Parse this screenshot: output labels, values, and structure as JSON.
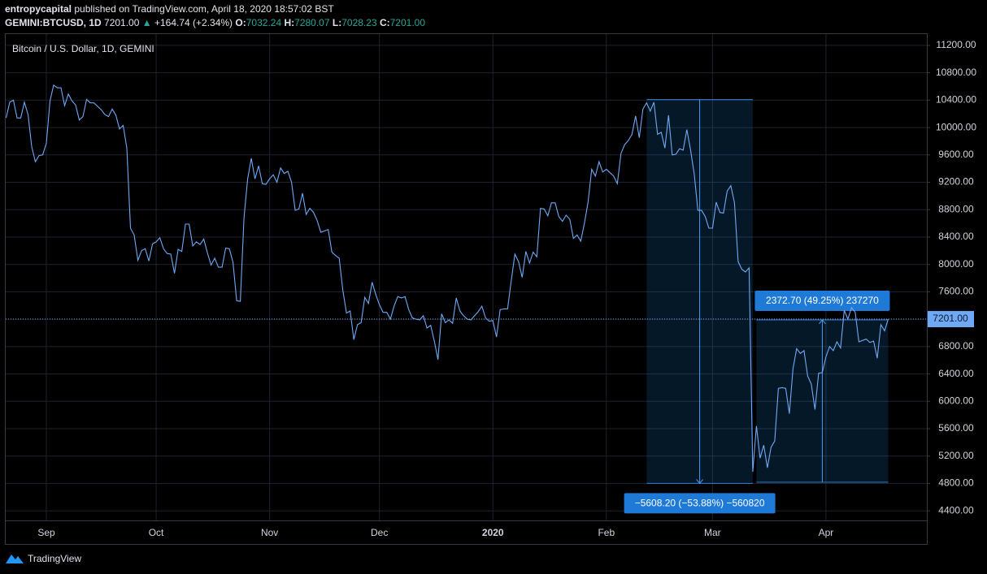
{
  "header": {
    "author": "entropycapital",
    "published": "published on TradingView.com, April 18, 2020 18:57:02 BST",
    "symbol": "GEMINI:BTCUSD, 1D",
    "price": "7201.00",
    "arrow": "▲",
    "change": "+164.74 (+2.34%)",
    "o_label": "O:",
    "o": "7032.24",
    "h_label": "H:",
    "h": "7280.07",
    "l_label": "L:",
    "l": "7028.23",
    "c_label": "C:",
    "c": "7201.00"
  },
  "footer": {
    "brand": "TradingView"
  },
  "chart_data": {
    "type": "line",
    "title": "Bitcoin / U.S. Dollar, 1D, GEMINI",
    "color": "#6fa8f5",
    "grid": true,
    "categories": [
      null,
      null,
      null,
      null,
      null,
      null,
      null,
      null,
      null,
      null,
      null,
      "Sep",
      null,
      null,
      null,
      null,
      null,
      null,
      null,
      null,
      null,
      null,
      null,
      null,
      null,
      null,
      null,
      null,
      null,
      null,
      null,
      null,
      null,
      null,
      null,
      null,
      null,
      null,
      null,
      null,
      null,
      "Oct",
      null,
      null,
      null,
      null,
      null,
      null,
      null,
      null,
      null,
      null,
      null,
      null,
      null,
      null,
      null,
      null,
      null,
      null,
      null,
      null,
      null,
      null,
      null,
      null,
      null,
      null,
      null,
      null,
      null,
      null,
      "Nov",
      null,
      null,
      null,
      null,
      null,
      null,
      null,
      null,
      null,
      null,
      null,
      null,
      null,
      null,
      null,
      null,
      null,
      null,
      null,
      null,
      null,
      null,
      null,
      null,
      null,
      null,
      null,
      null,
      null,
      "Dec",
      null,
      null,
      null,
      null,
      null,
      null,
      null,
      null,
      null,
      null,
      null,
      null,
      null,
      null,
      null,
      null,
      null,
      null,
      null,
      null,
      null,
      null,
      null,
      null,
      null,
      null,
      null,
      null,
      null,
      null,
      "2020",
      null,
      null,
      null,
      null,
      null,
      null,
      null,
      null,
      null,
      null,
      null,
      null,
      null,
      null,
      null,
      null,
      null,
      null,
      null,
      null,
      null,
      null,
      null,
      null,
      null,
      null,
      null,
      null,
      null,
      null,
      "Feb",
      null,
      null,
      null,
      null,
      null,
      null,
      null,
      null,
      null,
      null,
      null,
      null,
      null,
      null,
      null,
      null,
      null,
      null,
      null,
      null,
      null,
      null,
      null,
      null,
      null,
      null,
      null,
      null,
      "Mar",
      null,
      null,
      null,
      null,
      null,
      null,
      null,
      null,
      null,
      null,
      null,
      null,
      null,
      null,
      null,
      null,
      null,
      null,
      null,
      null,
      null,
      null,
      null,
      null,
      null,
      null,
      null,
      null,
      null,
      null,
      "Apr",
      null,
      null,
      null,
      null,
      null,
      null,
      null,
      null,
      null,
      null,
      null,
      null,
      null,
      null,
      null,
      null,
      null
    ],
    "values": [
      10140,
      10370,
      10400,
      10140,
      10140,
      10370,
      10190,
      9720,
      9500,
      9590,
      9600,
      9770,
      10390,
      10620,
      10580,
      10580,
      10320,
      10490,
      10390,
      10330,
      10110,
      10160,
      10410,
      10360,
      10360,
      10310,
      10260,
      10190,
      10160,
      10270,
      10180,
      9980,
      10030,
      9700,
      8530,
      8430,
      8060,
      8200,
      8230,
      8050,
      8300,
      8330,
      8390,
      8230,
      8160,
      8150,
      7870,
      8220,
      8190,
      8590,
      8590,
      8270,
      8330,
      8290,
      8370,
      8170,
      7990,
      8090,
      7960,
      7960,
      8240,
      8230,
      8030,
      7470,
      7460,
      8680,
      9250,
      9550,
      9250,
      9440,
      9180,
      9170,
      9250,
      9310,
      9200,
      9410,
      9330,
      9360,
      9200,
      8790,
      8810,
      9040,
      8730,
      8820,
      8760,
      8640,
      8470,
      8490,
      8510,
      8180,
      8130,
      8090,
      7620,
      7290,
      7320,
      6900,
      7120,
      7150,
      7520,
      7430,
      7740,
      7560,
      7410,
      7300,
      7300,
      7200,
      7390,
      7530,
      7510,
      7530,
      7340,
      7220,
      7200,
      7190,
      7250,
      7070,
      7110,
      6880,
      6610,
      7280,
      7150,
      7190,
      7140,
      7510,
      7320,
      7250,
      7200,
      7190,
      7250,
      7310,
      7390,
      7220,
      7170,
      7180,
      6940,
      7340,
      7350,
      7350,
      7760,
      8150,
      8040,
      7810,
      8190,
      8020,
      8180,
      8110,
      8820,
      8810,
      8710,
      8900,
      8900,
      8700,
      8630,
      8720,
      8660,
      8380,
      8430,
      8340,
      8600,
      8910,
      9390,
      9290,
      9500,
      9350,
      9390,
      9340,
      9290,
      9180,
      9620,
      9750,
      9810,
      9900,
      10170,
      9850,
      10270,
      10360,
      10240,
      10370,
      9900,
      9930,
      9700,
      10180,
      9600,
      9610,
      9690,
      9670,
      9970,
      9670,
      9320,
      8790,
      8790,
      8700,
      8530,
      8530,
      8910,
      8760,
      8750,
      9070,
      9150,
      8900,
      8040,
      7930,
      7890,
      7950,
      4970,
      5640,
      5170,
      5360,
      5030,
      5330,
      5420,
      6190,
      6200,
      6190,
      5820,
      6480,
      6770,
      6700,
      6740,
      6370,
      6250,
      5880,
      6410,
      6420,
      6650,
      6800,
      6740,
      6870,
      6780,
      7330,
      7200,
      7370,
      7300,
      6870,
      6890,
      6910,
      6860,
      6880,
      6630,
      7120,
      7030,
      7201
    ],
    "ylim": [
      4260,
      11365
    ],
    "yticks": [
      {
        "value": 4400,
        "label": "4400.00"
      },
      {
        "value": 4800,
        "label": "4800.00"
      },
      {
        "value": 5200,
        "label": "5200.00"
      },
      {
        "value": 5600,
        "label": "5600.00"
      },
      {
        "value": 6000,
        "label": "6000.00"
      },
      {
        "value": 6400,
        "label": "6400.00"
      },
      {
        "value": 6800,
        "label": "6800.00"
      },
      {
        "value": 7200,
        "label": "7200.00"
      },
      {
        "value": 7600,
        "label": "7600.00"
      },
      {
        "value": 8000,
        "label": "8000.00"
      },
      {
        "value": 8400,
        "label": "8400.00"
      },
      {
        "value": 8800,
        "label": "8800.00"
      },
      {
        "value": 9200,
        "label": "9200.00"
      },
      {
        "value": 9600,
        "label": "9600.00"
      },
      {
        "value": 10000,
        "label": "10000.00"
      },
      {
        "value": 10400,
        "label": "10400.00"
      },
      {
        "value": 10800,
        "label": "10800.00"
      },
      {
        "value": 11200,
        "label": "11200.00"
      }
    ],
    "last_price": {
      "value": 7201,
      "label": "7201.00"
    },
    "annotations": [
      {
        "from": 10408.7,
        "to": 4800.5,
        "label": "−5608.20 (−53.88%) −560820"
      },
      {
        "from": 4817.7,
        "to": 7190.4,
        "label": "2372.70 (49.25%) 237270"
      }
    ]
  }
}
